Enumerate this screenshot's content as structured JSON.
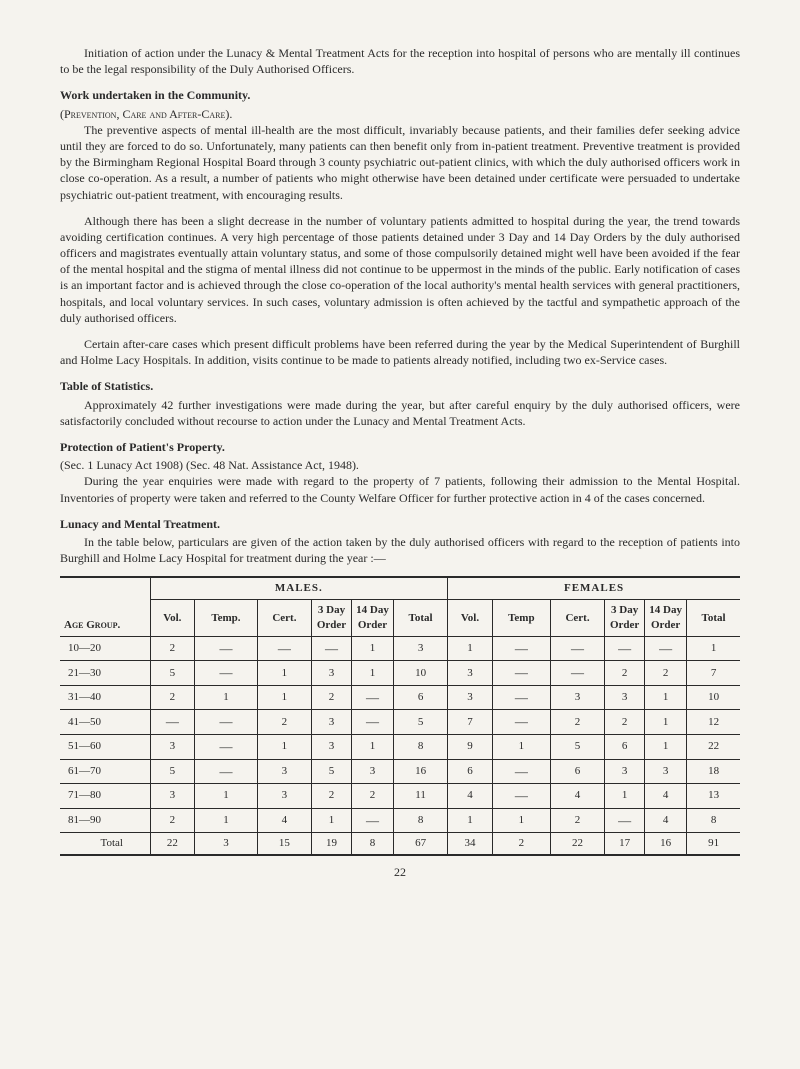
{
  "p1": "Initiation of action under the Lunacy & Mental Treatment Acts for the reception into hospital of persons who are mentally ill continues to be the legal responsibility of the Duly Authorised Officers.",
  "h1": "Work undertaken in the Community.",
  "sh1": "(Prevention, Care and After-Care).",
  "p2": "The preventive aspects of mental ill-health are the most difficult, invariably because patients, and their families defer seeking advice until they are forced to do so. Unfortunately, many patients can then benefit only from in-patient treatment. Preventive treatment is provided by the Birmingham Regional Hospital Board through 3 county psychiatric out-patient clinics, with which the duly authorised officers work in close co-operation. As a result, a number of patients who might otherwise have been detained under certificate were persuaded to undertake psychiatric out-patient treatment, with encouraging results.",
  "p3": "Although there has been a slight decrease in the number of voluntary patients admitted to hospital during the year, the trend towards avoiding certification continues. A very high percentage of those patients detained under 3 Day and 14 Day Orders by the duly authorised officers and magistrates eventually attain voluntary status, and some of those compulsorily detained might well have been avoided if the fear of the mental hospital and the stigma of mental illness did not continue to be uppermost in the minds of the public. Early notification of cases is an important factor and is achieved through the close co-operation of the local authority's mental health services with general practitioners, hospitals, and local voluntary services. In such cases, voluntary admission is often achieved by the tactful and sympathetic approach of the duly authorised officers.",
  "p4": "Certain after-care cases which present difficult problems have been referred during the year by the Medical Superintendent of Burghill and Holme Lacy Hospitals. In addition, visits continue to be made to patients already notified, including two ex-Service cases.",
  "h2": "Table of Statistics.",
  "p5": "Approximately 42 further investigations were made during the year, but after careful enquiry by the duly authorised officers, were satisfactorily concluded without recourse to action under the Lunacy and Mental Treatment Acts.",
  "h3": "Protection of Patient's Property.",
  "p6": "(Sec. 1 Lunacy Act 1908) (Sec. 48 Nat. Assistance Act, 1948).",
  "p7": "During the year enquiries were made with regard to the property of 7 patients, following their admission to the Mental Hospital.    Inventories of property were taken and referred to the County Welfare Officer for further protective action in 4 of the cases concerned.",
  "h4": "Lunacy and Mental Treatment.",
  "p8": "In the table below, particulars are given of the action taken by the duly authorised officers with regard to the reception of patients into Burghill and Holme Lacy Hospital for treatment during the year :—",
  "table": {
    "group_headers": [
      "MALES.",
      "FEMALES"
    ],
    "col_headers": [
      "Vol.",
      "Temp.",
      "Cert.",
      "3 Day Order",
      "14 Day Order",
      "Total",
      "Vol.",
      "Temp",
      "Cert.",
      "3 Day Order",
      "14 Day Order",
      "Total"
    ],
    "age_label": "Age Group.",
    "rows": [
      {
        "age": "10—20",
        "m": [
          "2",
          "—",
          "—",
          "—",
          "1",
          "3"
        ],
        "f": [
          "1",
          "—",
          "—",
          "—",
          "—",
          "1"
        ]
      },
      {
        "age": "21—30",
        "m": [
          "5",
          "—",
          "1",
          "3",
          "1",
          "10"
        ],
        "f": [
          "3",
          "—",
          "—",
          "2",
          "2",
          "7"
        ]
      },
      {
        "age": "31—40",
        "m": [
          "2",
          "1",
          "1",
          "2",
          "—",
          "6"
        ],
        "f": [
          "3",
          "—",
          "3",
          "3",
          "1",
          "10"
        ]
      },
      {
        "age": "41—50",
        "m": [
          "—",
          "—",
          "2",
          "3",
          "—",
          "5"
        ],
        "f": [
          "7",
          "—",
          "2",
          "2",
          "1",
          "12"
        ]
      },
      {
        "age": "51—60",
        "m": [
          "3",
          "—",
          "1",
          "3",
          "1",
          "8"
        ],
        "f": [
          "9",
          "1",
          "5",
          "6",
          "1",
          "22"
        ]
      },
      {
        "age": "61—70",
        "m": [
          "5",
          "—",
          "3",
          "5",
          "3",
          "16"
        ],
        "f": [
          "6",
          "—",
          "6",
          "3",
          "3",
          "18"
        ]
      },
      {
        "age": "71—80",
        "m": [
          "3",
          "1",
          "3",
          "2",
          "2",
          "11"
        ],
        "f": [
          "4",
          "—",
          "4",
          "1",
          "4",
          "13"
        ]
      },
      {
        "age": "81—90",
        "m": [
          "2",
          "1",
          "4",
          "1",
          "—",
          "8"
        ],
        "f": [
          "1",
          "1",
          "2",
          "—",
          "4",
          "8"
        ]
      }
    ],
    "total_label": "Total",
    "total_m": [
      "22",
      "3",
      "15",
      "19",
      "8",
      "67"
    ],
    "total_f": [
      "34",
      "2",
      "22",
      "17",
      "16",
      "91"
    ]
  },
  "page_number": "22"
}
